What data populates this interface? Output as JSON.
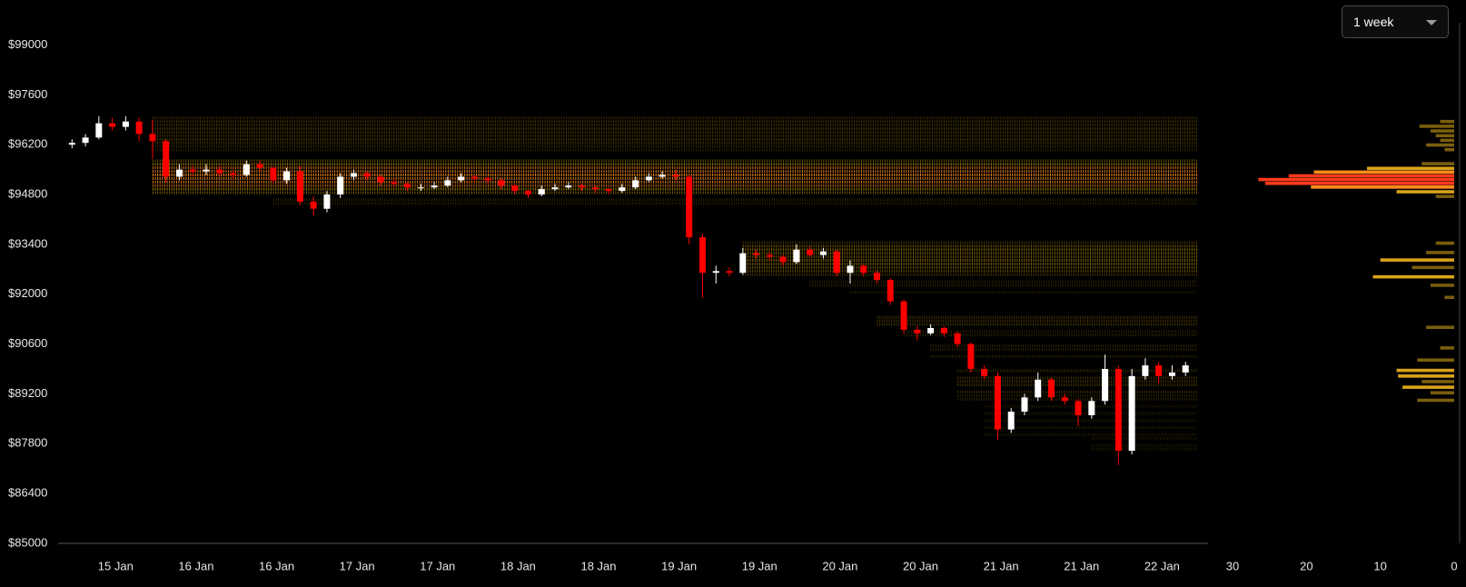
{
  "controls": {
    "timeframe": "1 week"
  },
  "chart_data": [
    {
      "type": "candlestick",
      "ylim": [
        85000,
        99000
      ],
      "yticks": [
        {
          "value": 85000,
          "label": "$85000"
        },
        {
          "value": 86400,
          "label": "$86400"
        },
        {
          "value": 87800,
          "label": "$87800"
        },
        {
          "value": 89200,
          "label": "$89200"
        },
        {
          "value": 90600,
          "label": "$90600"
        },
        {
          "value": 92000,
          "label": "$92000"
        },
        {
          "value": 93400,
          "label": "$93400"
        },
        {
          "value": 94800,
          "label": "$94800"
        },
        {
          "value": 96200,
          "label": "$96200"
        },
        {
          "value": 97600,
          "label": "$97600"
        },
        {
          "value": 99000,
          "label": "$99000"
        }
      ],
      "xticks": [
        {
          "value": 3.25,
          "label": "15 Jan"
        },
        {
          "value": 9.25,
          "label": "16 Jan"
        },
        {
          "value": 15.25,
          "label": "16 Jan"
        },
        {
          "value": 21.25,
          "label": "17 Jan"
        },
        {
          "value": 27.25,
          "label": "17 Jan"
        },
        {
          "value": 33.25,
          "label": "18 Jan"
        },
        {
          "value": 39.25,
          "label": "18 Jan"
        },
        {
          "value": 45.25,
          "label": "19 Jan"
        },
        {
          "value": 51.25,
          "label": "19 Jan"
        },
        {
          "value": 57.25,
          "label": "20 Jan"
        },
        {
          "value": 63.25,
          "label": "20 Jan"
        },
        {
          "value": 69.25,
          "label": "21 Jan"
        },
        {
          "value": 75.25,
          "label": "21 Jan"
        },
        {
          "value": 81.25,
          "label": "22 Jan"
        }
      ],
      "up_color": "#ffffff",
      "down_color": "#ff0000",
      "heat_color": "#e8b400",
      "heat_hot_color": "#ff8c1a",
      "ohlc": [
        [
          96200,
          96350,
          96100,
          96250
        ],
        [
          96250,
          96500,
          96150,
          96400
        ],
        [
          96400,
          97000,
          96350,
          96800
        ],
        [
          96800,
          96950,
          96600,
          96700
        ],
        [
          96700,
          97000,
          96600,
          96850
        ],
        [
          96850,
          96950,
          96300,
          96500
        ],
        [
          96500,
          96900,
          95800,
          96300
        ],
        [
          96300,
          96350,
          95150,
          95300
        ],
        [
          95300,
          95650,
          95200,
          95500
        ],
        [
          95500,
          95600,
          95350,
          95450
        ],
        [
          95450,
          95650,
          95350,
          95500
        ],
        [
          95500,
          95600,
          95300,
          95400
        ],
        [
          95400,
          95500,
          95250,
          95350
        ],
        [
          95350,
          95750,
          95300,
          95650
        ],
        [
          95650,
          95750,
          95450,
          95550
        ],
        [
          95550,
          95600,
          95100,
          95200
        ],
        [
          95200,
          95550,
          95100,
          95450
        ],
        [
          95450,
          95600,
          94500,
          94600
        ],
        [
          94600,
          94750,
          94200,
          94400
        ],
        [
          94400,
          94900,
          94300,
          94800
        ],
        [
          94800,
          95400,
          94700,
          95300
        ],
        [
          95300,
          95500,
          95200,
          95400
        ],
        [
          95400,
          95450,
          95200,
          95300
        ],
        [
          95300,
          95350,
          95050,
          95150
        ],
        [
          95150,
          95250,
          95000,
          95100
        ],
        [
          95100,
          95150,
          94900,
          95000
        ],
        [
          95000,
          95100,
          94900,
          95000
        ],
        [
          95000,
          95150,
          94950,
          95050
        ],
        [
          95050,
          95300,
          95000,
          95200
        ],
        [
          95200,
          95400,
          95150,
          95300
        ],
        [
          95300,
          95350,
          95150,
          95250
        ],
        [
          95250,
          95300,
          95100,
          95200
        ],
        [
          95200,
          95250,
          94950,
          95050
        ],
        [
          95050,
          95100,
          94800,
          94900
        ],
        [
          94900,
          94950,
          94700,
          94800
        ],
        [
          94800,
          95050,
          94750,
          94950
        ],
        [
          94950,
          95100,
          94900,
          95000
        ],
        [
          95000,
          95150,
          94950,
          95050
        ],
        [
          95050,
          95100,
          94900,
          95000
        ],
        [
          95000,
          95050,
          94850,
          94950
        ],
        [
          94950,
          95000,
          94800,
          94900
        ],
        [
          94900,
          95100,
          94850,
          95000
        ],
        [
          95000,
          95300,
          94950,
          95200
        ],
        [
          95200,
          95400,
          95150,
          95300
        ],
        [
          95300,
          95450,
          95250,
          95350
        ],
        [
          95350,
          95500,
          95200,
          95300
        ],
        [
          95300,
          95350,
          93400,
          93600
        ],
        [
          93600,
          93700,
          91900,
          92600
        ],
        [
          92600,
          92800,
          92300,
          92650
        ],
        [
          92650,
          92750,
          92500,
          92600
        ],
        [
          92600,
          93300,
          92550,
          93150
        ],
        [
          93150,
          93250,
          93000,
          93100
        ],
        [
          93100,
          93200,
          92950,
          93050
        ],
        [
          93050,
          93100,
          92800,
          92900
        ],
        [
          92900,
          93400,
          92850,
          93250
        ],
        [
          93250,
          93350,
          93050,
          93100
        ],
        [
          93100,
          93300,
          93000,
          93200
        ],
        [
          93200,
          93250,
          92500,
          92600
        ],
        [
          92600,
          92950,
          92300,
          92800
        ],
        [
          92800,
          92850,
          92500,
          92600
        ],
        [
          92600,
          92650,
          92300,
          92400
        ],
        [
          92400,
          92450,
          91700,
          91800
        ],
        [
          91800,
          91850,
          90900,
          91000
        ],
        [
          91000,
          91100,
          90700,
          90900
        ],
        [
          90900,
          91150,
          90850,
          91050
        ],
        [
          91050,
          91100,
          90800,
          90900
        ],
        [
          90900,
          90950,
          90500,
          90600
        ],
        [
          90600,
          90650,
          89800,
          89900
        ],
        [
          89900,
          90000,
          89600,
          89700
        ],
        [
          89700,
          89800,
          87900,
          88200
        ],
        [
          88200,
          88800,
          88100,
          88700
        ],
        [
          88700,
          89200,
          88600,
          89100
        ],
        [
          89100,
          89800,
          89000,
          89600
        ],
        [
          89600,
          89650,
          89000,
          89100
        ],
        [
          89100,
          89200,
          88900,
          89000
        ],
        [
          89000,
          89050,
          88300,
          88600
        ],
        [
          88600,
          89100,
          88500,
          89000
        ],
        [
          89000,
          90300,
          88900,
          89900
        ],
        [
          89900,
          90000,
          87200,
          87600
        ],
        [
          87600,
          89900,
          87500,
          89700
        ],
        [
          89700,
          90200,
          89600,
          90000
        ],
        [
          90000,
          90100,
          89500,
          89700
        ],
        [
          89700,
          90000,
          89600,
          89800
        ],
        [
          89800,
          90100,
          89700,
          90000
        ]
      ],
      "heatmap": [
        {
          "price": 96950,
          "start": 6,
          "intensity": 0.25
        },
        {
          "price": 96850,
          "start": 6,
          "intensity": 0.3
        },
        {
          "price": 96750,
          "start": 6,
          "intensity": 0.3
        },
        {
          "price": 96650,
          "start": 6,
          "intensity": 0.35
        },
        {
          "price": 96550,
          "start": 6,
          "intensity": 0.3
        },
        {
          "price": 96450,
          "start": 6,
          "intensity": 0.3
        },
        {
          "price": 96350,
          "start": 6,
          "intensity": 0.35
        },
        {
          "price": 96250,
          "start": 6,
          "intensity": 0.3
        },
        {
          "price": 96150,
          "start": 6,
          "intensity": 0.25
        },
        {
          "price": 96050,
          "start": 6,
          "intensity": 0.2
        },
        {
          "price": 95750,
          "start": 6,
          "intensity": 0.45
        },
        {
          "price": 95650,
          "start": 6,
          "intensity": 0.7
        },
        {
          "price": 95550,
          "start": 6,
          "intensity": 0.85
        },
        {
          "price": 95450,
          "start": 6,
          "intensity": 0.9
        },
        {
          "price": 95350,
          "start": 6,
          "intensity": 1.0
        },
        {
          "price": 95250,
          "start": 6,
          "intensity": 0.95
        },
        {
          "price": 95150,
          "start": 6,
          "intensity": 0.9
        },
        {
          "price": 95050,
          "start": 6,
          "intensity": 0.8
        },
        {
          "price": 94950,
          "start": 6,
          "intensity": 0.7
        },
        {
          "price": 94850,
          "start": 6,
          "intensity": 0.5
        },
        {
          "price": 94650,
          "start": 15,
          "intensity": 0.2
        },
        {
          "price": 94550,
          "start": 15,
          "intensity": 0.2
        },
        {
          "price": 93450,
          "start": 50,
          "intensity": 0.3
        },
        {
          "price": 93350,
          "start": 50,
          "intensity": 0.5
        },
        {
          "price": 93250,
          "start": 50,
          "intensity": 0.6
        },
        {
          "price": 93150,
          "start": 50,
          "intensity": 0.55
        },
        {
          "price": 93050,
          "start": 50,
          "intensity": 0.5
        },
        {
          "price": 92950,
          "start": 50,
          "intensity": 0.6
        },
        {
          "price": 92850,
          "start": 50,
          "intensity": 0.55
        },
        {
          "price": 92750,
          "start": 50,
          "intensity": 0.5
        },
        {
          "price": 92650,
          "start": 50,
          "intensity": 0.45
        },
        {
          "price": 92550,
          "start": 50,
          "intensity": 0.3
        },
        {
          "price": 92350,
          "start": 55,
          "intensity": 0.2
        },
        {
          "price": 92250,
          "start": 55,
          "intensity": 0.2
        },
        {
          "price": 92050,
          "start": 58,
          "intensity": 0.15
        },
        {
          "price": 91350,
          "start": 60,
          "intensity": 0.3
        },
        {
          "price": 91250,
          "start": 60,
          "intensity": 0.3
        },
        {
          "price": 91150,
          "start": 60,
          "intensity": 0.3
        },
        {
          "price": 90950,
          "start": 62,
          "intensity": 0.2
        },
        {
          "price": 90850,
          "start": 62,
          "intensity": 0.2
        },
        {
          "price": 90550,
          "start": 64,
          "intensity": 0.2
        },
        {
          "price": 90450,
          "start": 64,
          "intensity": 0.2
        },
        {
          "price": 90250,
          "start": 64,
          "intensity": 0.2
        },
        {
          "price": 89850,
          "start": 66,
          "intensity": 0.25
        },
        {
          "price": 89650,
          "start": 66,
          "intensity": 0.3
        },
        {
          "price": 89550,
          "start": 66,
          "intensity": 0.3
        },
        {
          "price": 89450,
          "start": 66,
          "intensity": 0.3
        },
        {
          "price": 89250,
          "start": 66,
          "intensity": 0.25
        },
        {
          "price": 89150,
          "start": 66,
          "intensity": 0.2
        },
        {
          "price": 89050,
          "start": 66,
          "intensity": 0.2
        },
        {
          "price": 88850,
          "start": 68,
          "intensity": 0.15
        },
        {
          "price": 88650,
          "start": 68,
          "intensity": 0.15
        },
        {
          "price": 88450,
          "start": 68,
          "intensity": 0.15
        },
        {
          "price": 88250,
          "start": 68,
          "intensity": 0.15
        },
        {
          "price": 88050,
          "start": 68,
          "intensity": 0.15
        },
        {
          "price": 87950,
          "start": 76,
          "intensity": 0.15
        },
        {
          "price": 87750,
          "start": 76,
          "intensity": 0.15
        },
        {
          "price": 87650,
          "start": 76,
          "intensity": 0.15
        }
      ]
    },
    {
      "type": "volume-profile",
      "xlim": [
        30,
        0
      ],
      "xticks": [
        30,
        20,
        10,
        0
      ],
      "color_steps": [
        {
          "min": 20,
          "color": "#ff3a1a"
        },
        {
          "min": 12,
          "color": "#ff8c1a"
        },
        {
          "min": 6,
          "color": "#d9a21a"
        },
        {
          "min": 0,
          "color": "#7a5e0e"
        }
      ],
      "bars": [
        {
          "price": 96850,
          "value": 1.9
        },
        {
          "price": 96717,
          "value": 4.7
        },
        {
          "price": 96585,
          "value": 3.2
        },
        {
          "price": 96453,
          "value": 2.5
        },
        {
          "price": 96322,
          "value": 1.9
        },
        {
          "price": 96190,
          "value": 3.8
        },
        {
          "price": 96060,
          "value": 1.3
        },
        {
          "price": 95666,
          "value": 4.4
        },
        {
          "price": 95534,
          "value": 11.8
        },
        {
          "price": 95430,
          "value": 19
        },
        {
          "price": 95324,
          "value": 22.4
        },
        {
          "price": 95220,
          "value": 26.5
        },
        {
          "price": 95114,
          "value": 25.6
        },
        {
          "price": 95009,
          "value": 19.4
        },
        {
          "price": 94877,
          "value": 7.8
        },
        {
          "price": 94746,
          "value": 2.5
        },
        {
          "price": 93433,
          "value": 2.5
        },
        {
          "price": 93170,
          "value": 3.8
        },
        {
          "price": 92960,
          "value": 10
        },
        {
          "price": 92750,
          "value": 5.7
        },
        {
          "price": 92487,
          "value": 11
        },
        {
          "price": 92250,
          "value": 3.2
        },
        {
          "price": 91910,
          "value": 1.3
        },
        {
          "price": 91068,
          "value": 3.8
        },
        {
          "price": 90490,
          "value": 1.9
        },
        {
          "price": 90150,
          "value": 5
        },
        {
          "price": 89860,
          "value": 7.8
        },
        {
          "price": 89700,
          "value": 7.6
        },
        {
          "price": 89545,
          "value": 4.4
        },
        {
          "price": 89387,
          "value": 7
        },
        {
          "price": 89230,
          "value": 3.2
        },
        {
          "price": 89020,
          "value": 5
        }
      ]
    }
  ]
}
